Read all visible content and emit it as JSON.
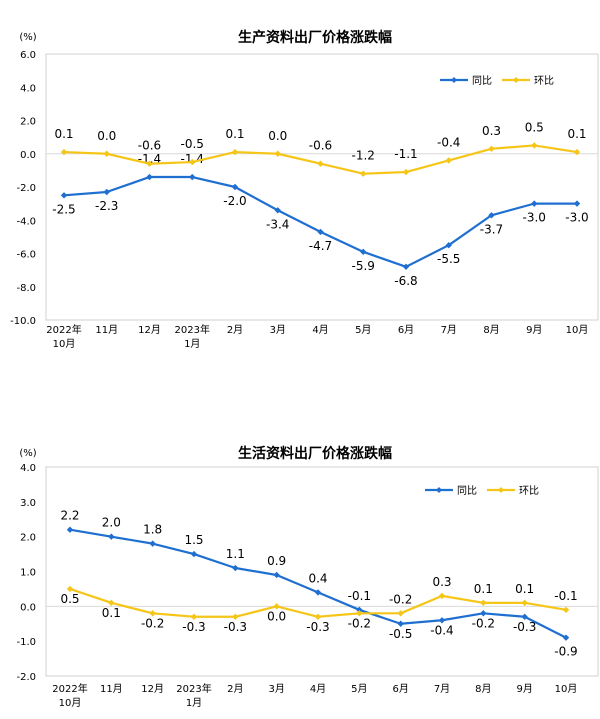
{
  "chart_data": [
    {
      "type": "line",
      "title": "生产资料出厂价格涨跌幅",
      "yunit": "(%)",
      "ylim": [
        -10.0,
        6.0
      ],
      "yticks": [
        "6.0",
        "4.0",
        "2.0",
        "0.0",
        "-2.0",
        "-4.0",
        "-6.0",
        "-8.0",
        "-10.0"
      ],
      "ytick_values": [
        6,
        4,
        2,
        0,
        -2,
        -4,
        -6,
        -8,
        -10
      ],
      "categories": [
        [
          "2022年",
          "10月"
        ],
        [
          "11月"
        ],
        [
          "12月"
        ],
        [
          "2023年",
          "1月"
        ],
        [
          "2月"
        ],
        [
          "3月"
        ],
        [
          "4月"
        ],
        [
          "5月"
        ],
        [
          "6月"
        ],
        [
          "7月"
        ],
        [
          "8月"
        ],
        [
          "9月"
        ],
        [
          "10月"
        ]
      ],
      "legend_position": "top-right",
      "series": [
        {
          "name": "同比",
          "color": "#1f6fd1",
          "values": [
            -2.5,
            -2.3,
            -1.4,
            -1.4,
            -2.0,
            -3.4,
            -4.7,
            -5.9,
            -6.8,
            -5.5,
            -3.7,
            -3.0,
            -3.0
          ],
          "labels": [
            "-2.5",
            "-2.3",
            "-1.4",
            "-1.4",
            "-2.0",
            "-3.4",
            "-4.7",
            "-5.9",
            "-6.8",
            "-5.5",
            "-3.7",
            "-3.0",
            "-3.0"
          ]
        },
        {
          "name": "环比",
          "color": "#f5c518",
          "values": [
            0.1,
            0.0,
            -0.6,
            -0.5,
            0.1,
            0.0,
            -0.6,
            -1.2,
            -1.1,
            -0.4,
            0.3,
            0.5,
            0.1
          ],
          "labels": [
            "0.1",
            "0.0",
            "-0.6",
            "-0.5",
            "0.1",
            "0.0",
            "-0.6",
            "-1.2",
            "-1.1",
            "-0.4",
            "0.3",
            "0.5",
            "0.1"
          ]
        }
      ]
    },
    {
      "type": "line",
      "title": "生活资料出厂价格涨跌幅",
      "yunit": "(%)",
      "ylim": [
        -2.0,
        4.0
      ],
      "yticks": [
        "4.0",
        "3.0",
        "2.0",
        "1.0",
        "0.0",
        "-1.0",
        "-2.0"
      ],
      "ytick_values": [
        4,
        3,
        2,
        1,
        0,
        -1,
        -2
      ],
      "categories": [
        [
          "2022年",
          "10月"
        ],
        [
          "11月"
        ],
        [
          "12月"
        ],
        [
          "2023年",
          "1月"
        ],
        [
          "2月"
        ],
        [
          "3月"
        ],
        [
          "4月"
        ],
        [
          "5月"
        ],
        [
          "6月"
        ],
        [
          "7月"
        ],
        [
          "8月"
        ],
        [
          "9月"
        ],
        [
          "10月"
        ]
      ],
      "legend_position": "top-right",
      "series": [
        {
          "name": "同比",
          "color": "#1f6fd1",
          "values": [
            2.2,
            2.0,
            1.8,
            1.5,
            1.1,
            0.9,
            0.4,
            -0.1,
            -0.5,
            -0.4,
            -0.2,
            -0.3,
            -0.9
          ],
          "labels": [
            "2.2",
            "2.0",
            "1.8",
            "1.5",
            "1.1",
            "0.9",
            "0.4",
            "-0.1",
            "-0.5",
            "-0.4",
            "-0.2",
            "-0.3",
            "-0.9"
          ]
        },
        {
          "name": "环比",
          "color": "#f5c518",
          "values": [
            0.5,
            0.1,
            -0.2,
            -0.3,
            -0.3,
            0.0,
            -0.3,
            -0.2,
            -0.2,
            0.3,
            0.1,
            0.1,
            -0.1
          ],
          "labels": [
            "0.5",
            "0.1",
            "-0.2",
            "-0.3",
            "-0.3",
            "0.0",
            "-0.3",
            "-0.2",
            "-0.2",
            "0.3",
            "0.1",
            "0.1",
            "-0.1"
          ]
        }
      ]
    }
  ]
}
